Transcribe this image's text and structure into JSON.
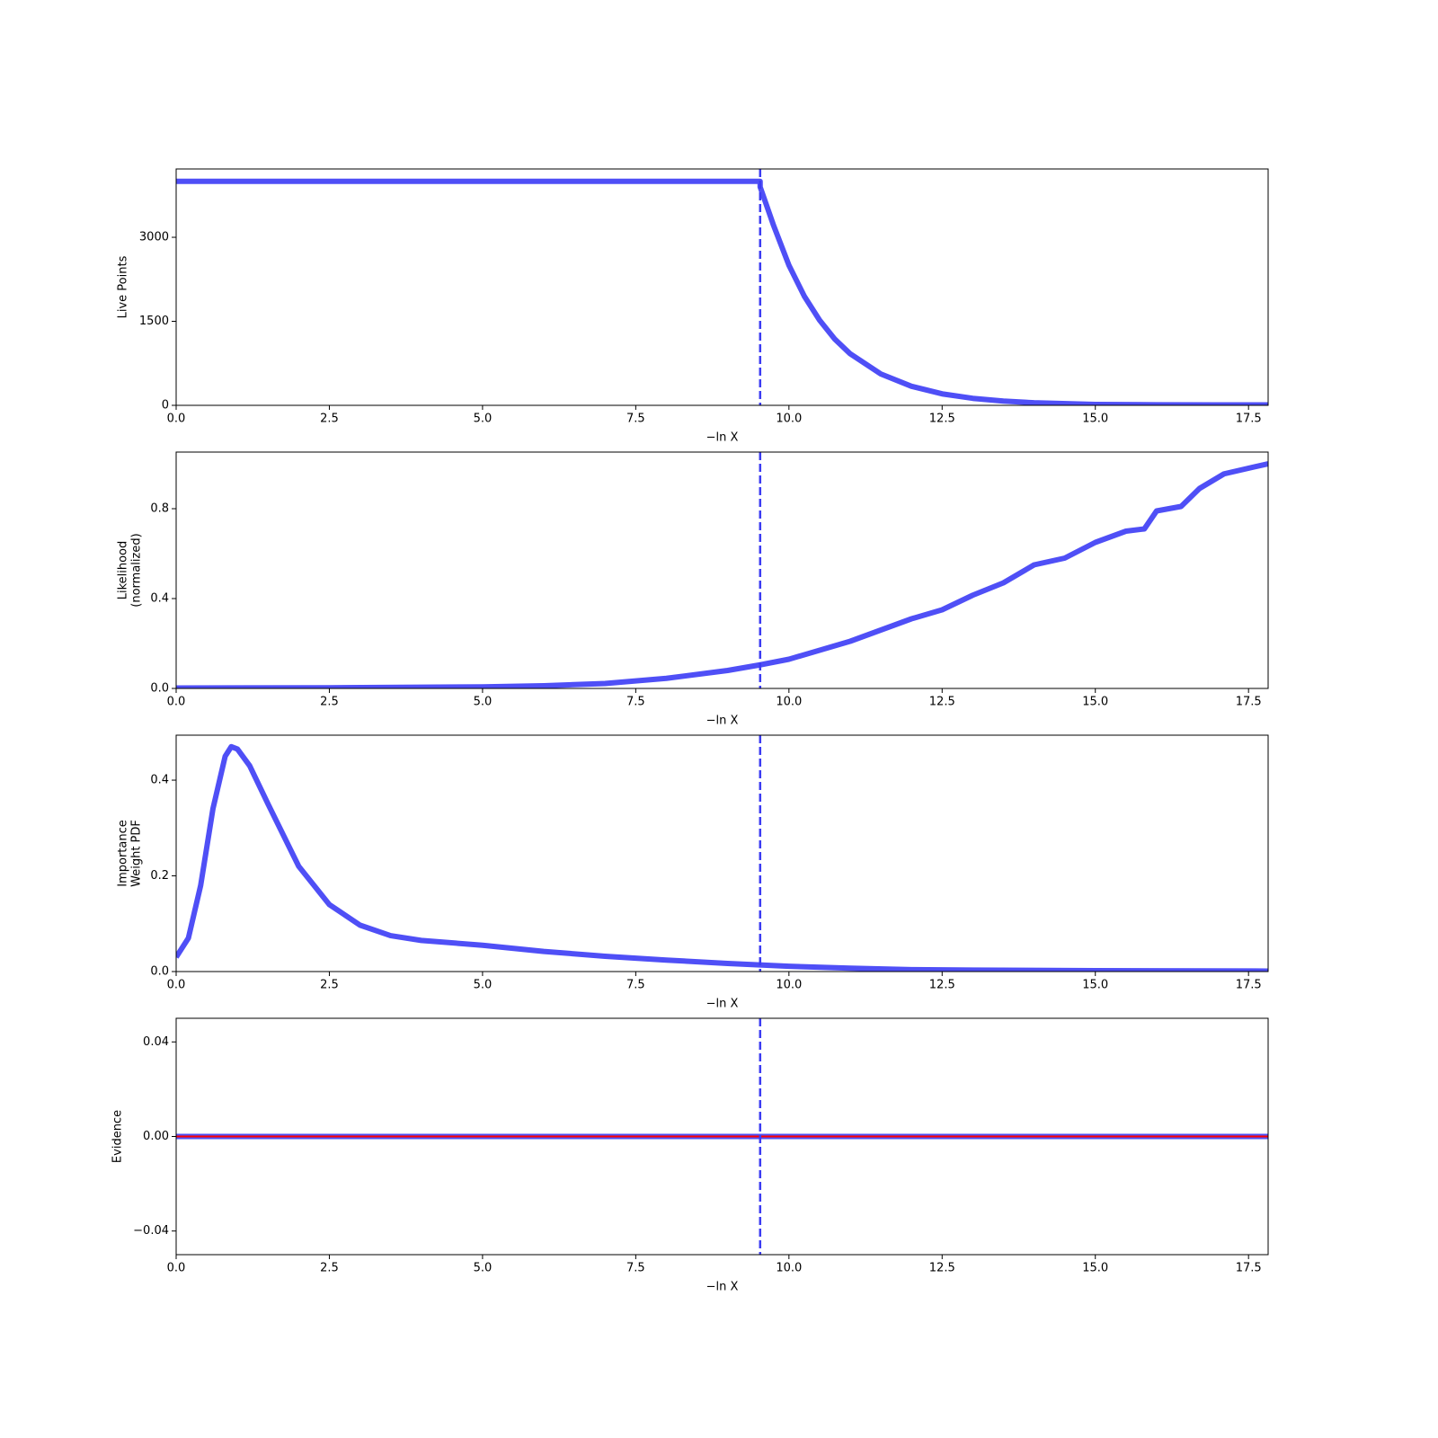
{
  "chart_data": [
    {
      "type": "line",
      "ylabel": [
        "Live Points"
      ],
      "xlabel": "−ln X",
      "color": "#4f4ff6",
      "linewidth": 6,
      "x": [
        0,
        9.53,
        9.53,
        9.75,
        10,
        10.25,
        10.5,
        10.75,
        11,
        11.5,
        12,
        12.5,
        13,
        13.5,
        14,
        15,
        16,
        17,
        17.82
      ],
      "values": [
        4000,
        4000,
        3900,
        3210,
        2500,
        1950,
        1520,
        1180,
        920,
        560,
        340,
        205,
        125,
        76,
        46,
        17,
        10,
        8,
        8
      ],
      "vline": {
        "value": 9.53,
        "color": "#3c3cf2"
      },
      "xlim": [
        0,
        17.82
      ],
      "ylim": [
        0,
        4220
      ],
      "xticks": [
        {
          "value": 0,
          "label": "0.0"
        },
        {
          "value": 2.5,
          "label": "2.5"
        },
        {
          "value": 5,
          "label": "5.0"
        },
        {
          "value": 7.5,
          "label": "7.5"
        },
        {
          "value": 10,
          "label": "10.0"
        },
        {
          "value": 12.5,
          "label": "12.5"
        },
        {
          "value": 15,
          "label": "15.0"
        },
        {
          "value": 17.5,
          "label": "17.5"
        }
      ],
      "yticks": [
        0,
        1500,
        3000
      ]
    },
    {
      "type": "line",
      "ylabel": [
        "Likelihood",
        "(normalized)"
      ],
      "xlabel": "−ln X",
      "color": "#4f4ff6",
      "linewidth": 6,
      "x": [
        0,
        2.5,
        5,
        6,
        7,
        8,
        9,
        9.53,
        10,
        11,
        12,
        12.5,
        13,
        13.5,
        14,
        14.5,
        15,
        15.5,
        15.8,
        16,
        16.4,
        16.7,
        17.1,
        17.82
      ],
      "values": [
        0.002,
        0.003,
        0.007,
        0.012,
        0.022,
        0.045,
        0.08,
        0.105,
        0.13,
        0.21,
        0.31,
        0.35,
        0.415,
        0.47,
        0.55,
        0.58,
        0.65,
        0.7,
        0.71,
        0.79,
        0.81,
        0.89,
        0.955,
        1.0
      ],
      "vline": {
        "value": 9.53,
        "color": "#3c3cf2"
      },
      "xlim": [
        0,
        17.82
      ],
      "ylim": [
        0,
        1.052
      ],
      "xticks": [
        {
          "value": 0,
          "label": "0.0"
        },
        {
          "value": 2.5,
          "label": "2.5"
        },
        {
          "value": 5,
          "label": "5.0"
        },
        {
          "value": 7.5,
          "label": "7.5"
        },
        {
          "value": 10,
          "label": "10.0"
        },
        {
          "value": 12.5,
          "label": "12.5"
        },
        {
          "value": 15,
          "label": "15.0"
        },
        {
          "value": 17.5,
          "label": "17.5"
        }
      ],
      "yticks": [
        {
          "value": 0,
          "label": "0.0"
        },
        {
          "value": 0.4,
          "label": "0.4"
        },
        {
          "value": 0.8,
          "label": "0.8"
        }
      ]
    },
    {
      "type": "line",
      "ylabel": [
        "Importance",
        "Weight PDF"
      ],
      "xlabel": "−ln X",
      "color": "#4f4ff6",
      "linewidth": 6,
      "x": [
        0,
        0.2,
        0.4,
        0.6,
        0.8,
        0.9,
        1.0,
        1.2,
        1.5,
        2.0,
        2.5,
        3.0,
        3.5,
        4,
        5,
        6,
        7,
        8,
        9,
        10,
        11,
        12,
        13,
        15,
        17.82
      ],
      "values": [
        0.03,
        0.07,
        0.18,
        0.34,
        0.45,
        0.47,
        0.465,
        0.43,
        0.35,
        0.22,
        0.14,
        0.097,
        0.075,
        0.065,
        0.055,
        0.042,
        0.032,
        0.024,
        0.017,
        0.011,
        0.007,
        0.004,
        0.003,
        0.002,
        0.001
      ],
      "vline": {
        "value": 9.53,
        "color": "#3c3cf2"
      },
      "xlim": [
        0,
        17.82
      ],
      "ylim": [
        0,
        0.494
      ],
      "xticks": [
        {
          "value": 0,
          "label": "0.0"
        },
        {
          "value": 2.5,
          "label": "2.5"
        },
        {
          "value": 5,
          "label": "5.0"
        },
        {
          "value": 7.5,
          "label": "7.5"
        },
        {
          "value": 10,
          "label": "10.0"
        },
        {
          "value": 12.5,
          "label": "12.5"
        },
        {
          "value": 15,
          "label": "15.0"
        },
        {
          "value": 17.5,
          "label": "17.5"
        }
      ],
      "yticks": [
        {
          "value": 0,
          "label": "0.0"
        },
        {
          "value": 0.2,
          "label": "0.2"
        },
        {
          "value": 0.4,
          "label": "0.4"
        }
      ]
    },
    {
      "type": "line",
      "ylabel": [
        "Evidence"
      ],
      "xlabel": "−ln X",
      "x": [
        0,
        17.82
      ],
      "series": [
        {
          "color": "#4f4ff6",
          "linewidth": 6,
          "values": [
            0,
            0
          ]
        },
        {
          "color": "#ff0000",
          "linewidth": 2,
          "values": [
            0,
            0
          ]
        }
      ],
      "vline": {
        "value": 9.53,
        "color": "#3c3cf2"
      },
      "xlim": [
        0,
        17.82
      ],
      "ylim": [
        -0.05,
        0.05
      ],
      "xticks": [
        {
          "value": 0,
          "label": "0.0"
        },
        {
          "value": 2.5,
          "label": "2.5"
        },
        {
          "value": 5,
          "label": "5.0"
        },
        {
          "value": 7.5,
          "label": "7.5"
        },
        {
          "value": 10,
          "label": "10.0"
        },
        {
          "value": 12.5,
          "label": "12.5"
        },
        {
          "value": 15,
          "label": "15.0"
        },
        {
          "value": 17.5,
          "label": "17.5"
        }
      ],
      "yticks": [
        {
          "value": 0.04,
          "label": "0.04"
        },
        {
          "value": 0,
          "label": "0.00"
        },
        {
          "value": -0.04,
          "label": "−0.04"
        }
      ]
    }
  ]
}
